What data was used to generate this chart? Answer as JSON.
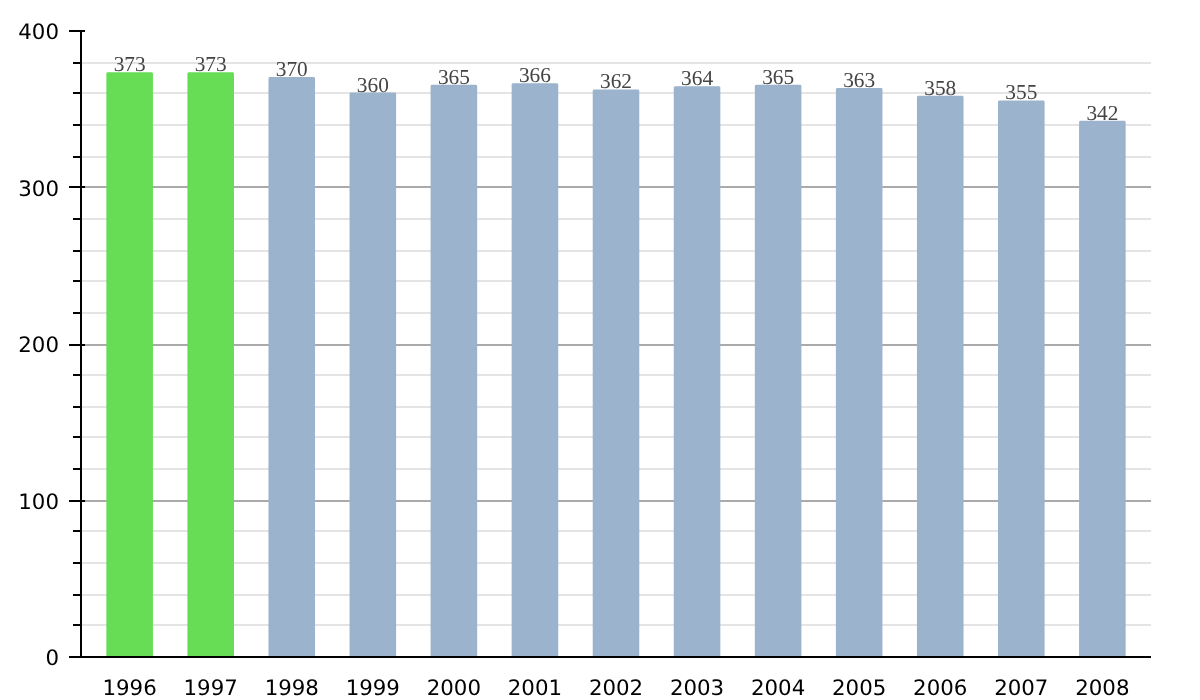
{
  "chart_data": {
    "type": "bar",
    "categories": [
      "1996",
      "1997",
      "1998",
      "1999",
      "2000",
      "2001",
      "2002",
      "2003",
      "2004",
      "2005",
      "2006",
      "2007",
      "2008"
    ],
    "values": [
      373,
      373,
      370,
      360,
      365,
      366,
      362,
      364,
      365,
      363,
      358,
      355,
      342
    ],
    "colors": [
      "#66dd55",
      "#66dd55",
      "#9bb3cc",
      "#9bb3cc",
      "#9bb3cc",
      "#9bb3cc",
      "#9bb3cc",
      "#9bb3cc",
      "#9bb3cc",
      "#9bb3cc",
      "#9bb3cc",
      "#9bb3cc",
      "#9bb3cc"
    ],
    "ylim": [
      0,
      400
    ],
    "yticks": [
      0,
      100,
      200,
      300,
      400
    ],
    "grid": "y",
    "data_labels": true
  }
}
